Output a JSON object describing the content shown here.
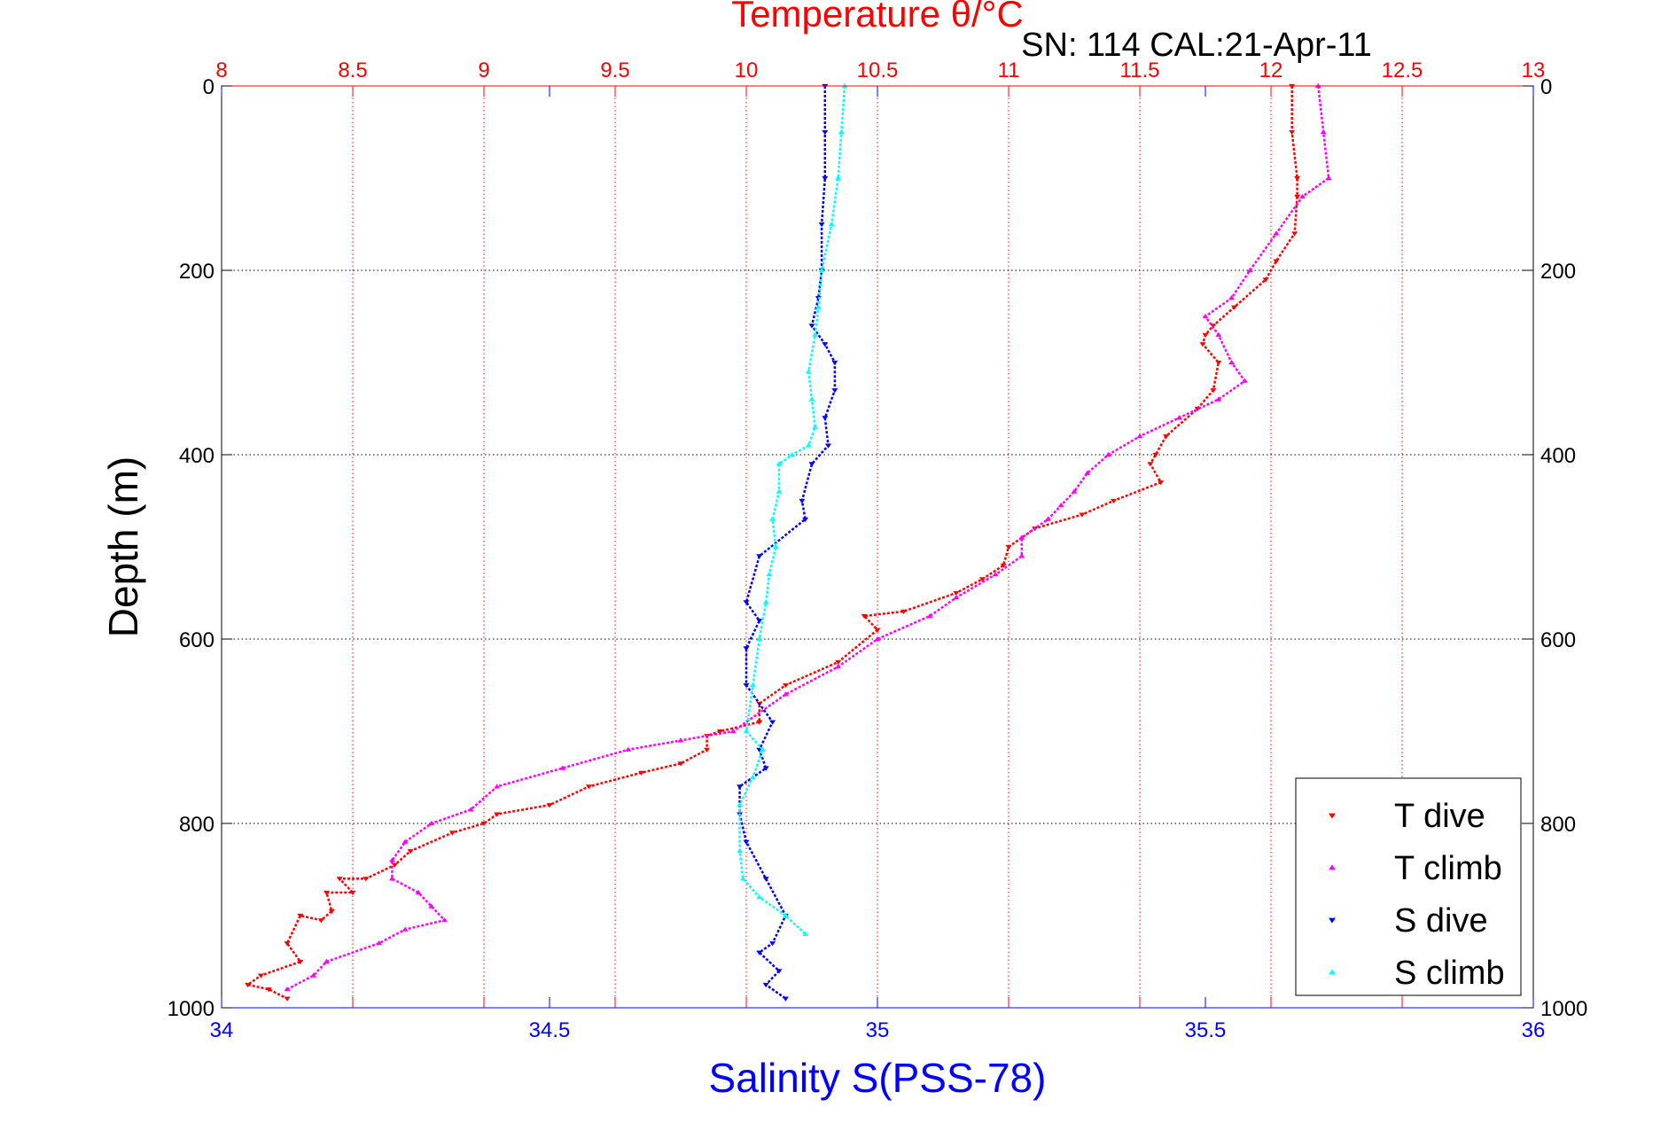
{
  "figure": {
    "top_title": "Temperature θ/°C",
    "subtitle": "SN: 114  CAL:21-Apr-11",
    "xlabel_bottom": "Salinity S(PSS-78)",
    "ylabel": "Depth (m)"
  },
  "chart_data": {
    "type": "scatter",
    "title": "Temperature θ/°C",
    "subtitle": "SN: 114  CAL:21-Apr-11",
    "y_axis": {
      "label": "Depth (m)",
      "range": [
        0,
        1000
      ],
      "reversed": true,
      "ticks": [
        "0",
        "200",
        "400",
        "600",
        "800",
        "1000"
      ],
      "ticks_right": [
        "0",
        "200",
        "400",
        "600",
        "800",
        "1000"
      ],
      "grid": true
    },
    "x_axis_top": {
      "label": "Temperature θ/°C",
      "range": [
        8,
        13
      ],
      "ticks": [
        "8",
        "8.5",
        "9",
        "9.5",
        "10",
        "10.5",
        "11",
        "11.5",
        "12",
        "12.5",
        "13"
      ],
      "color": "#ff0000",
      "grid": true
    },
    "x_axis_bottom": {
      "label": "Salinity S(PSS-78)",
      "range": [
        34,
        36
      ],
      "ticks": [
        "34",
        "34.5",
        "35",
        "35.5",
        "36"
      ],
      "color": "#0000ff"
    },
    "legend": {
      "position": "bottom-right",
      "entries": [
        {
          "label": "T dive",
          "color": "#ff0000",
          "marker": "triangle-down"
        },
        {
          "label": "T climb",
          "color": "#ff00ff",
          "marker": "triangle-up"
        },
        {
          "label": "S dive",
          "color": "#0000ff",
          "marker": "triangle-down"
        },
        {
          "label": "S climb",
          "color": "#00ffff",
          "marker": "triangle-up"
        }
      ]
    },
    "series": [
      {
        "name": "T dive",
        "axis": "temperature",
        "color": "#ff0000",
        "marker": "triangle-down",
        "x": [
          12.08,
          12.08,
          12.1,
          12.1,
          12.09,
          12.02,
          11.98,
          11.86,
          11.78,
          11.75,
          11.74,
          11.8,
          11.78,
          11.72,
          11.6,
          11.56,
          11.54,
          11.58,
          11.4,
          11.28,
          11.1,
          11.0,
          10.98,
          10.9,
          10.8,
          10.6,
          10.45,
          10.5,
          10.35,
          10.15,
          10.05,
          10.05,
          9.9,
          9.85,
          9.85,
          9.75,
          9.6,
          9.4,
          9.25,
          9.05,
          9.0,
          8.88,
          8.72,
          8.66,
          8.55,
          8.45,
          8.5,
          8.4,
          8.42,
          8.38,
          8.3,
          8.25,
          8.3,
          8.15,
          8.1,
          8.18,
          8.25
        ],
        "y": [
          0,
          50,
          100,
          120,
          160,
          190,
          210,
          240,
          260,
          270,
          280,
          300,
          330,
          350,
          380,
          400,
          410,
          430,
          450,
          465,
          480,
          500,
          520,
          535,
          550,
          570,
          575,
          590,
          625,
          650,
          670,
          690,
          700,
          705,
          720,
          735,
          745,
          760,
          780,
          790,
          800,
          810,
          830,
          845,
          860,
          860,
          875,
          875,
          895,
          905,
          900,
          930,
          950,
          965,
          975,
          980,
          990
        ]
      },
      {
        "name": "T climb",
        "axis": "temperature",
        "color": "#ff00ff",
        "marker": "triangle-up",
        "x": [
          12.18,
          12.2,
          12.22,
          12.12,
          12.02,
          11.92,
          11.85,
          11.75,
          11.8,
          11.85,
          11.9,
          11.8,
          11.65,
          11.5,
          11.38,
          11.3,
          11.25,
          11.2,
          11.15,
          11.05,
          11.05,
          10.95,
          10.8,
          10.7,
          10.5,
          10.35,
          10.15,
          9.95,
          9.75,
          9.55,
          9.3,
          9.05,
          8.95,
          8.8,
          8.7,
          8.65,
          8.65,
          8.75,
          8.8,
          8.85,
          8.7,
          8.6,
          8.4,
          8.35,
          8.25
        ],
        "y": [
          0,
          50,
          100,
          120,
          160,
          200,
          230,
          250,
          270,
          300,
          320,
          340,
          360,
          380,
          400,
          420,
          440,
          455,
          470,
          490,
          510,
          530,
          555,
          575,
          600,
          630,
          660,
          700,
          710,
          720,
          740,
          760,
          785,
          800,
          820,
          840,
          860,
          875,
          890,
          905,
          915,
          930,
          950,
          965,
          980
        ]
      },
      {
        "name": "S dive",
        "axis": "salinity",
        "color": "#0000ff",
        "marker": "triangle-down",
        "x": [
          34.92,
          34.92,
          34.92,
          34.915,
          34.915,
          34.91,
          34.9,
          34.92,
          34.935,
          34.935,
          34.92,
          34.925,
          34.9,
          34.885,
          34.89,
          34.82,
          34.8,
          34.82,
          34.8,
          34.8,
          34.84,
          34.82,
          34.83,
          34.79,
          34.79,
          34.8,
          34.83,
          34.86,
          34.84,
          34.82,
          34.85,
          34.83,
          34.86
        ],
        "y": [
          0,
          50,
          100,
          150,
          200,
          230,
          260,
          280,
          300,
          330,
          360,
          390,
          410,
          450,
          470,
          510,
          560,
          580,
          610,
          650,
          690,
          720,
          740,
          760,
          790,
          820,
          860,
          900,
          930,
          940,
          960,
          975,
          990
        ]
      },
      {
        "name": "S climb",
        "axis": "salinity",
        "color": "#00ffff",
        "marker": "triangle-up",
        "x": [
          34.95,
          34.945,
          34.94,
          34.93,
          34.915,
          34.91,
          34.905,
          34.895,
          34.9,
          34.905,
          34.895,
          34.87,
          34.85,
          34.85,
          34.84,
          34.845,
          34.835,
          34.83,
          34.82,
          34.81,
          34.8,
          34.825,
          34.81,
          34.79,
          34.79,
          34.795,
          34.82,
          34.86,
          34.89
        ],
        "y": [
          0,
          50,
          100,
          150,
          200,
          240,
          270,
          310,
          340,
          370,
          390,
          400,
          410,
          440,
          470,
          500,
          530,
          560,
          600,
          650,
          700,
          720,
          750,
          780,
          830,
          860,
          880,
          900,
          920
        ]
      }
    ]
  }
}
